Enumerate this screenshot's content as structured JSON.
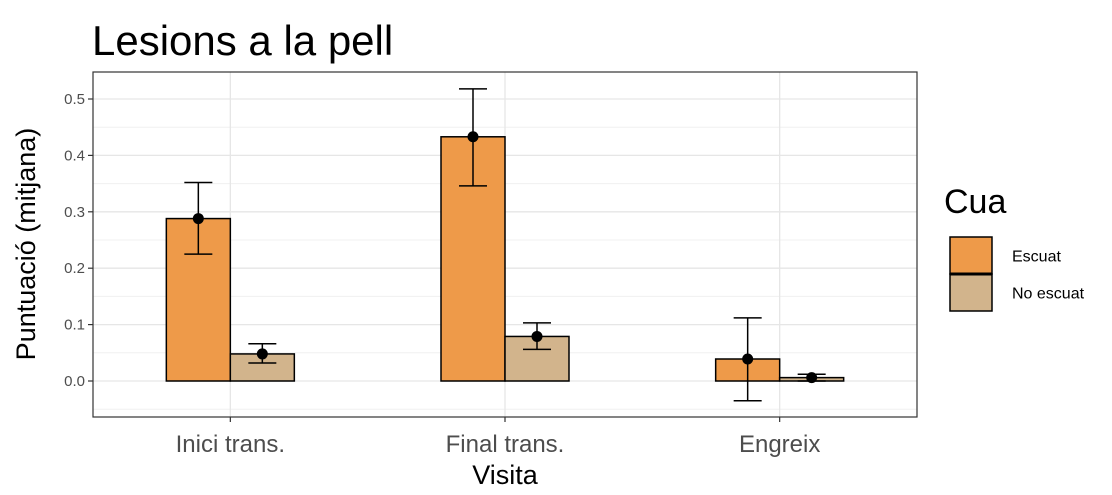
{
  "chart_data": {
    "type": "bar",
    "title": "Lesions a la pell",
    "xlabel": "Visita",
    "ylabel": "Puntuació (mitjana)",
    "categories": [
      "Inici trans.",
      "Final trans.",
      "Engreix"
    ],
    "ylim": [
      -0.06,
      0.55
    ],
    "yticks": [
      0.0,
      0.1,
      0.2,
      0.3,
      0.4,
      0.5
    ],
    "ytick_labels": [
      "0.0",
      "0.1",
      "0.2",
      "0.3",
      "0.4",
      "0.5"
    ],
    "grid": true,
    "legend": {
      "title": "Cua",
      "placement": "right"
    },
    "series": [
      {
        "name": "Escuat",
        "color": "#EE9A49",
        "values": [
          0.288,
          0.433,
          0.039
        ],
        "error_low": [
          0.225,
          0.346,
          -0.035
        ],
        "error_high": [
          0.352,
          0.518,
          0.112
        ]
      },
      {
        "name": "No escuat",
        "color": "#D2B48C",
        "values": [
          0.048,
          0.079,
          0.006
        ],
        "error_low": [
          0.032,
          0.056,
          0.0
        ],
        "error_high": [
          0.066,
          0.103,
          0.012
        ]
      }
    ]
  }
}
